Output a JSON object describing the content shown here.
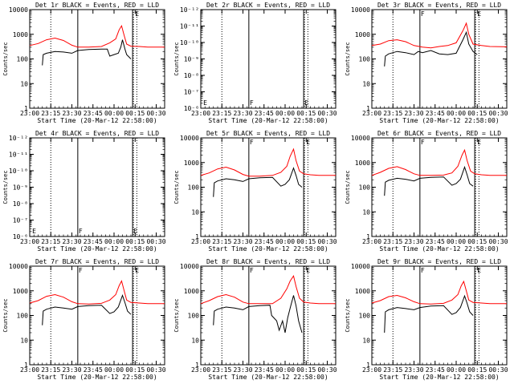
{
  "figure": {
    "start_time_label": "Start Time (20-Mar-12 22:58:00)",
    "ylabel": "Counts/sec",
    "xtick_labels": [
      "23:00",
      "23:15",
      "23:30",
      "23:45",
      "00:00",
      "00:15",
      "00:30"
    ],
    "xtick_hours": [
      23.0,
      23.25,
      23.5,
      23.75,
      24.0,
      24.25,
      24.5
    ],
    "xlim_hours": [
      23.0,
      24.6
    ],
    "dotted_lines_hours": [
      23.25,
      24.23,
      24.27
    ],
    "solid_lines_hours": [
      23.57,
      24.22
    ],
    "colors": {
      "events": "#000000",
      "lld": "#ff0000"
    }
  },
  "chart_data": [
    {
      "type": "line",
      "title": "Det 1r BLACK = Events, RED = LLD",
      "yscale": "log",
      "ylim": [
        1,
        10000
      ],
      "ytick_labels": [
        "1",
        "10",
        "100",
        "1000",
        "10000"
      ],
      "flag_letters": [
        {
          "text": "E",
          "at_hour": 24.24
        }
      ],
      "series": [
        {
          "name": "LLD",
          "color": "#ff0000",
          "x": [
            23.0,
            23.1,
            23.2,
            23.3,
            23.4,
            23.5,
            23.57,
            23.7,
            23.85,
            23.95,
            24.02,
            24.06,
            24.09,
            24.12,
            24.15,
            24.2,
            24.3,
            24.4,
            24.5,
            24.6
          ],
          "y": [
            350,
            420,
            600,
            700,
            560,
            360,
            300,
            300,
            320,
            450,
            650,
            1500,
            2200,
            900,
            400,
            330,
            320,
            300,
            300,
            300
          ]
        },
        {
          "name": "Events",
          "color": "#000000",
          "x": [
            23.15,
            23.16,
            23.2,
            23.3,
            23.4,
            23.5,
            23.57,
            23.7,
            23.85,
            23.92,
            23.95,
            24.0,
            24.05,
            24.08,
            24.1,
            24.13,
            24.15,
            24.2
          ],
          "y": [
            55,
            150,
            170,
            200,
            190,
            170,
            220,
            240,
            250,
            250,
            130,
            150,
            170,
            300,
            600,
            250,
            150,
            100
          ]
        }
      ]
    },
    {
      "type": "line",
      "title": "Det 2r BLACK = Events, RED = LLD",
      "yscale": "log",
      "ylim": [
        1e-06,
        1e-12
      ],
      "ytick_labels": [
        "10⁻⁶",
        "10⁻⁷",
        "10⁻⁸",
        "10⁻⁹",
        "10⁻¹⁰",
        "10⁻¹¹",
        "10⁻¹²"
      ],
      "flag_letters": [
        {
          "text": "E",
          "at_hour": 23.02
        },
        {
          "text": "F",
          "at_hour": 23.57
        },
        {
          "text": "E",
          "at_hour": 24.22
        }
      ],
      "series": []
    },
    {
      "type": "line",
      "title": "Det 3r BLACK = Events, RED = LLD",
      "yscale": "log",
      "ylim": [
        1,
        10000
      ],
      "ytick_labels": [
        "1",
        "10",
        "100",
        "1000",
        "10000"
      ],
      "flag_letters": [
        {
          "text": "F",
          "at_hour": 23.57
        },
        {
          "text": "E",
          "at_hour": 24.24
        }
      ],
      "series": [
        {
          "name": "LLD",
          "color": "#ff0000",
          "x": [
            23.0,
            23.1,
            23.2,
            23.3,
            23.4,
            23.5,
            23.6,
            23.7,
            23.8,
            23.9,
            24.0,
            24.08,
            24.12,
            24.15,
            24.2,
            24.3,
            24.4,
            24.6
          ],
          "y": [
            350,
            400,
            550,
            600,
            500,
            350,
            300,
            280,
            320,
            350,
            450,
            1400,
            2800,
            1000,
            400,
            350,
            320,
            310
          ]
        },
        {
          "name": "Events",
          "color": "#000000",
          "x": [
            23.15,
            23.16,
            23.2,
            23.3,
            23.4,
            23.5,
            23.55,
            23.6,
            23.7,
            23.8,
            23.9,
            24.0,
            24.08,
            24.12,
            24.15,
            24.2,
            24.25
          ],
          "y": [
            50,
            130,
            160,
            200,
            180,
            150,
            200,
            180,
            220,
            160,
            150,
            170,
            600,
            1200,
            400,
            200,
            150
          ]
        }
      ]
    },
    {
      "type": "line",
      "title": "Det 4r BLACK = Events, RED = LLD",
      "yscale": "log",
      "ylim": [
        1e-06,
        1e-12
      ],
      "ytick_labels": [
        "10⁻⁶",
        "10⁻⁷",
        "10⁻⁸",
        "10⁻⁹",
        "10⁻¹⁰",
        "10⁻¹¹",
        "10⁻¹²"
      ],
      "flag_letters": [
        {
          "text": "E",
          "at_hour": 23.02
        },
        {
          "text": "F",
          "at_hour": 23.57
        },
        {
          "text": "E",
          "at_hour": 24.22
        }
      ],
      "series": []
    },
    {
      "type": "line",
      "title": "Det 5r BLACK = Events, RED = LLD",
      "yscale": "log",
      "ylim": [
        1,
        10000
      ],
      "ytick_labels": [
        "1",
        "10",
        "100",
        "1000",
        "10000"
      ],
      "flag_letters": [
        {
          "text": "F",
          "at_hour": 23.57
        },
        {
          "text": "E",
          "at_hour": 24.24
        }
      ],
      "series": [
        {
          "name": "LLD",
          "color": "#ff0000",
          "x": [
            23.0,
            23.1,
            23.2,
            23.3,
            23.4,
            23.5,
            23.57,
            23.7,
            23.85,
            23.95,
            24.02,
            24.06,
            24.1,
            24.13,
            24.17,
            24.22,
            24.3,
            24.4,
            24.6
          ],
          "y": [
            300,
            380,
            550,
            650,
            500,
            330,
            280,
            280,
            300,
            400,
            700,
            1800,
            3500,
            1200,
            450,
            350,
            320,
            300,
            300
          ]
        },
        {
          "name": "Events",
          "color": "#000000",
          "x": [
            23.15,
            23.16,
            23.2,
            23.3,
            23.4,
            23.5,
            23.57,
            23.7,
            23.85,
            23.95,
            24.0,
            24.05,
            24.1,
            24.13,
            24.16,
            24.2
          ],
          "y": [
            40,
            150,
            180,
            220,
            200,
            170,
            220,
            240,
            250,
            110,
            130,
            200,
            600,
            300,
            130,
            100
          ]
        }
      ]
    },
    {
      "type": "line",
      "title": "Det 6r BLACK = Events, RED = LLD",
      "yscale": "log",
      "ylim": [
        1,
        10000
      ],
      "ytick_labels": [
        "1",
        "10",
        "100",
        "1000",
        "10000"
      ],
      "flag_letters": [
        {
          "text": "F",
          "at_hour": 23.57
        },
        {
          "text": "E",
          "at_hour": 24.24
        }
      ],
      "series": [
        {
          "name": "LLD",
          "color": "#ff0000",
          "x": [
            23.0,
            23.1,
            23.2,
            23.3,
            23.4,
            23.5,
            23.57,
            23.7,
            23.85,
            23.95,
            24.02,
            24.07,
            24.1,
            24.13,
            24.17,
            24.22,
            24.3,
            24.4,
            24.6
          ],
          "y": [
            300,
            400,
            580,
            680,
            520,
            350,
            300,
            300,
            310,
            380,
            700,
            2000,
            3200,
            1200,
            450,
            350,
            320,
            300,
            300
          ]
        },
        {
          "name": "Events",
          "color": "#000000",
          "x": [
            23.15,
            23.16,
            23.2,
            23.3,
            23.4,
            23.5,
            23.57,
            23.7,
            23.85,
            23.95,
            24.0,
            24.05,
            24.1,
            24.13,
            24.16,
            24.2
          ],
          "y": [
            45,
            160,
            190,
            230,
            210,
            180,
            230,
            250,
            260,
            120,
            140,
            210,
            650,
            320,
            140,
            110
          ]
        }
      ]
    },
    {
      "type": "line",
      "title": "Det 7r BLACK = Events, RED = LLD",
      "yscale": "log",
      "ylim": [
        1,
        10000
      ],
      "ytick_labels": [
        "1",
        "10",
        "100",
        "1000",
        "10000"
      ],
      "flag_letters": [
        {
          "text": "F",
          "at_hour": 23.57
        },
        {
          "text": "E",
          "at_hour": 24.24
        }
      ],
      "series": [
        {
          "name": "LLD",
          "color": "#ff0000",
          "x": [
            23.0,
            23.1,
            23.2,
            23.3,
            23.4,
            23.5,
            23.57,
            23.7,
            23.85,
            23.95,
            24.02,
            24.06,
            24.09,
            24.12,
            24.15,
            24.2,
            24.3,
            24.4,
            24.6
          ],
          "y": [
            320,
            400,
            600,
            700,
            550,
            360,
            300,
            290,
            310,
            420,
            700,
            1600,
            2500,
            1000,
            420,
            340,
            320,
            300,
            300
          ]
        },
        {
          "name": "Events",
          "color": "#000000",
          "x": [
            23.15,
            23.16,
            23.2,
            23.3,
            23.4,
            23.5,
            23.57,
            23.7,
            23.85,
            23.95,
            24.0,
            24.05,
            24.1,
            24.13,
            24.16,
            24.2
          ],
          "y": [
            40,
            150,
            180,
            220,
            200,
            180,
            230,
            250,
            260,
            120,
            140,
            220,
            650,
            330,
            150,
            110
          ]
        }
      ]
    },
    {
      "type": "line",
      "title": "Det 8r BLACK = Events, RED = LLD",
      "yscale": "log",
      "ylim": [
        1,
        10000
      ],
      "ytick_labels": [
        "1",
        "10",
        "100",
        "1000",
        "10000"
      ],
      "flag_letters": [
        {
          "text": "F",
          "at_hour": 23.57
        },
        {
          "text": "E",
          "at_hour": 24.24
        }
      ],
      "series": [
        {
          "name": "LLD",
          "color": "#ff0000",
          "x": [
            23.0,
            23.1,
            23.2,
            23.3,
            23.4,
            23.5,
            23.57,
            23.7,
            23.85,
            23.95,
            24.02,
            24.06,
            24.1,
            24.13,
            24.17,
            24.22,
            24.3,
            24.4,
            24.6
          ],
          "y": [
            300,
            400,
            580,
            700,
            550,
            350,
            300,
            300,
            300,
            500,
            1200,
            2500,
            4000,
            1500,
            500,
            350,
            320,
            300,
            300
          ]
        },
        {
          "name": "Events",
          "color": "#000000",
          "x": [
            23.15,
            23.16,
            23.2,
            23.3,
            23.4,
            23.5,
            23.57,
            23.7,
            23.82,
            23.84,
            23.9,
            23.93,
            23.97,
            24.0,
            24.03,
            24.06,
            24.1,
            24.13,
            24.16,
            24.2
          ],
          "y": [
            40,
            150,
            180,
            220,
            200,
            170,
            230,
            250,
            260,
            100,
            60,
            25,
            60,
            20,
            80,
            200,
            650,
            250,
            60,
            20
          ]
        }
      ]
    },
    {
      "type": "line",
      "title": "Det 9r BLACK = Events, RED = LLD",
      "yscale": "log",
      "ylim": [
        1,
        10000
      ],
      "ytick_labels": [
        "1",
        "10",
        "100",
        "1000",
        "10000"
      ],
      "flag_letters": [
        {
          "text": "F",
          "at_hour": 23.57
        },
        {
          "text": "E",
          "at_hour": 24.24
        }
      ],
      "series": [
        {
          "name": "LLD",
          "color": "#ff0000",
          "x": [
            23.0,
            23.1,
            23.2,
            23.3,
            23.4,
            23.5,
            23.57,
            23.7,
            23.85,
            23.95,
            24.02,
            24.06,
            24.09,
            24.12,
            24.15,
            24.2,
            24.3,
            24.4,
            24.6
          ],
          "y": [
            320,
            400,
            580,
            650,
            520,
            360,
            300,
            290,
            310,
            420,
            700,
            1600,
            2400,
            1000,
            420,
            340,
            320,
            300,
            300
          ]
        },
        {
          "name": "Events",
          "color": "#000000",
          "x": [
            23.15,
            23.16,
            23.2,
            23.3,
            23.4,
            23.5,
            23.57,
            23.7,
            23.85,
            23.95,
            24.0,
            24.05,
            24.1,
            24.13,
            24.16,
            24.2
          ],
          "y": [
            20,
            140,
            170,
            210,
            190,
            170,
            210,
            240,
            250,
            110,
            130,
            210,
            620,
            310,
            140,
            100
          ]
        }
      ]
    }
  ]
}
